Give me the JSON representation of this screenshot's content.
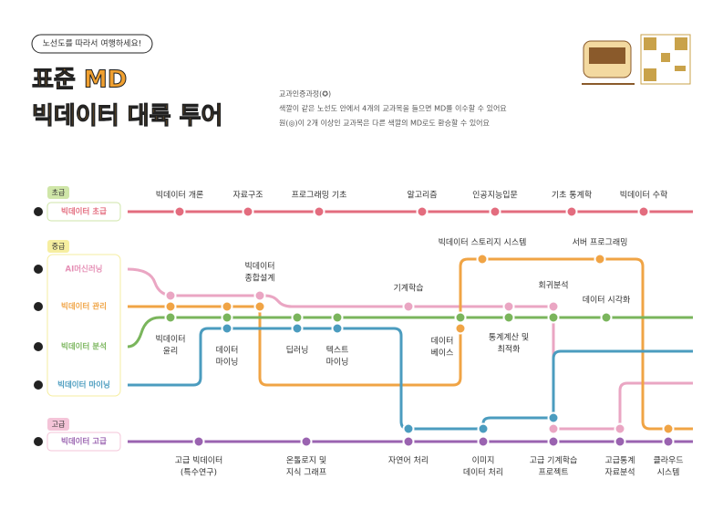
{
  "header": {
    "tagline": "노선도를 따라서 여행하세요!",
    "title": [
      "표준 MD",
      "빅데이터 대륙 투어"
    ],
    "notes": [
      "교과인증과정(✪)",
      "색깔이 같은 노선도    안에서  4개의 교과목을 들으면 MD를 이수할 수 있어요",
      "원(◎)이 2개 이상인    교과목은 다른 색깔의 MD로도 환승할 수 있어요"
    ]
  },
  "levels": [
    "초급",
    "중급",
    "고급"
  ],
  "lines": [
    "빅데이터 초급",
    "AI머신러닝",
    "빅데이터 관리",
    "빅데이터 분석",
    "빅데이터 마이닝",
    "빅데이터 고급"
  ],
  "stations": [
    {
      "lines": [
        "빅데이터 개론"
      ]
    },
    {
      "lines": [
        "자료구조"
      ]
    },
    {
      "lines": [
        "프로그래밍 기초"
      ]
    },
    {
      "lines": [
        "알고리즘"
      ]
    },
    {
      "lines": [
        "인공지능입문"
      ]
    },
    {
      "lines": [
        "기초 통계학"
      ]
    },
    {
      "lines": [
        "빅데이터 수학"
      ]
    },
    {
      "lines": [
        "빅데이터",
        "윤리"
      ]
    },
    {
      "lines": [
        "데이터",
        "마이닝"
      ]
    },
    {
      "lines": [
        "빅데이터",
        "종합설계"
      ]
    },
    {
      "lines": [
        "딥러닝"
      ]
    },
    {
      "lines": [
        "텍스트",
        "마이닝"
      ]
    },
    {
      "lines": [
        "기계학습"
      ]
    },
    {
      "lines": [
        "데이터",
        "베이스"
      ]
    },
    {
      "lines": [
        "빅데이터 스토리지 시스템"
      ]
    },
    {
      "lines": [
        "통계계산 및",
        "최적화"
      ]
    },
    {
      "lines": [
        "서버 프로그래밍"
      ]
    },
    {
      "lines": [
        "회귀분석"
      ]
    },
    {
      "lines": [
        "데이터 시각화"
      ]
    },
    {
      "lines": [
        "고급 빅데이터",
        "(특수연구)"
      ]
    },
    {
      "lines": [
        "온톨로지 및",
        "지식 그래프"
      ]
    },
    {
      "lines": [
        "자연어 처리"
      ]
    },
    {
      "lines": [
        "이미지",
        "데이터 처리"
      ]
    },
    {
      "lines": [
        "고급 기계학습",
        "프로젝트"
      ]
    },
    {
      "lines": [
        "고급통계",
        "자료분석"
      ]
    },
    {
      "lines": [
        "클라우드",
        "시스템"
      ]
    }
  ]
}
